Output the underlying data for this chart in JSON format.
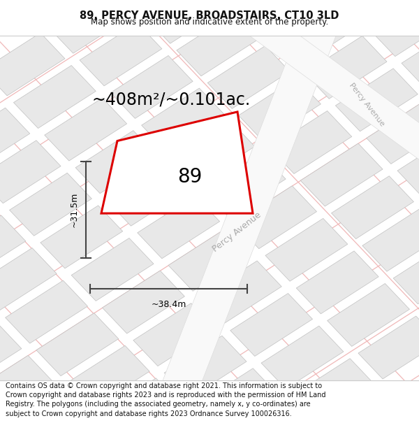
{
  "title_line1": "89, PERCY AVENUE, BROADSTAIRS, CT10 3LD",
  "title_line2": "Map shows position and indicative extent of the property.",
  "area_label": "~408m²/~0.101ac.",
  "plot_number": "89",
  "dim_width": "~38.4m",
  "dim_height": "~31.5m",
  "road_label_main": "Percy Avenue",
  "road_label_side": "Percy Avenue",
  "footer_text": "Contains OS data © Crown copyright and database right 2021. This information is subject to Crown copyright and database rights 2023 and is reproduced with the permission of HM Land Registry. The polygons (including the associated geometry, namely x, y co-ordinates) are subject to Crown copyright and database rights 2023 Ordnance Survey 100026316.",
  "map_bg": "#f7f4f4",
  "block_fill": "#e8e8e8",
  "block_edge": "#c0c0c0",
  "road_fill": "#f5f5f5",
  "plot_edge": "#dd0000",
  "plot_fill": "#ffffff",
  "dim_color": "#444444",
  "road_label_color": "#aaaaaa",
  "grid_line_color": "#f0b8b8",
  "title_color": "#111111",
  "footer_color": "#111111",
  "title_fontsize": 10.5,
  "subtitle_fontsize": 8.5,
  "area_fontsize": 17,
  "plot_num_fontsize": 20,
  "dim_fontsize": 9,
  "road_fontsize": 9,
  "footer_fontsize": 7
}
